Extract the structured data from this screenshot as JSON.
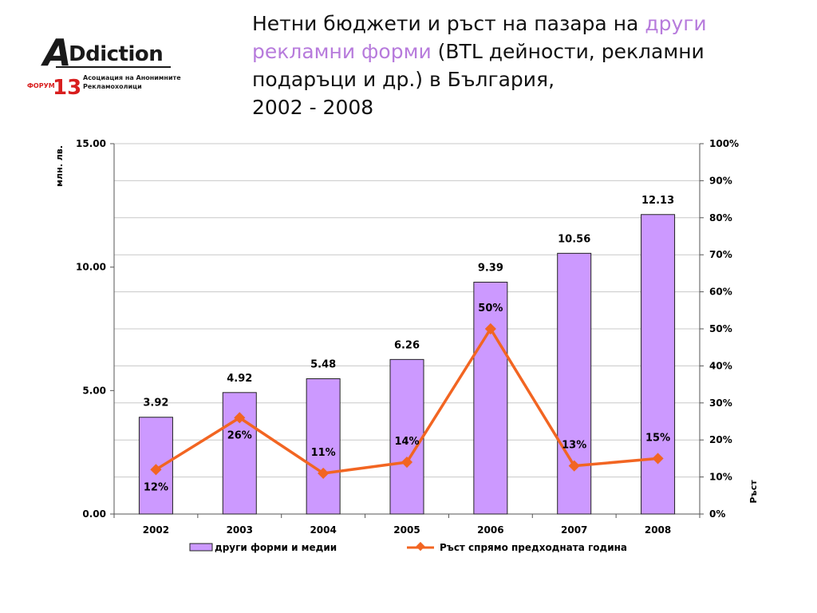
{
  "logo": {
    "word_a": "A",
    "word_rest": "Ddiction",
    "forum_label": "ФОРУМ",
    "forum_number": "13",
    "org_line1": "Асоциация на Анонимните",
    "org_line2": "Рекламохолици",
    "brand_red": "#d81e1e"
  },
  "title": {
    "part1": "Нетни бюджети и ръст на пазара на ",
    "accent1": "други",
    "accent2": "рекламни форми",
    "part2": " (BTL дейности, рекламни подаръци и др.) в България,",
    "part3": "2002 - 2008",
    "accent_color": "#b77bdc"
  },
  "chart_data": {
    "type": "bar",
    "categories": [
      "2002",
      "2003",
      "2004",
      "2005",
      "2006",
      "2007",
      "2008"
    ],
    "series": [
      {
        "name": "други форми и медии",
        "type": "bar",
        "axis": "left",
        "values": [
          3.92,
          4.92,
          5.48,
          6.26,
          9.39,
          10.56,
          12.13
        ],
        "labels": [
          "3.92",
          "4.92",
          "5.48",
          "6.26",
          "9.39",
          "10.56",
          "12.13"
        ],
        "color": "#cc99ff"
      },
      {
        "name": "Ръст спрямо предходната година",
        "type": "line",
        "axis": "right",
        "values": [
          12,
          26,
          11,
          14,
          50,
          13,
          15
        ],
        "labels": [
          "12%",
          "26%",
          "11%",
          "14%",
          "50%",
          "13%",
          "15%"
        ],
        "color": "#f26522"
      }
    ],
    "ylabel": "млн. лв.",
    "y2label": "Ръст",
    "ylim": [
      0,
      15
    ],
    "y2lim": [
      0,
      100
    ],
    "yticks": [
      "0.00",
      "5.00",
      "10.00",
      "15.00"
    ],
    "y2ticks": [
      "0%",
      "10%",
      "20%",
      "30%",
      "40%",
      "50%",
      "60%",
      "70%",
      "80%",
      "90%",
      "100%"
    ],
    "grid": true,
    "legend_position": "bottom"
  }
}
